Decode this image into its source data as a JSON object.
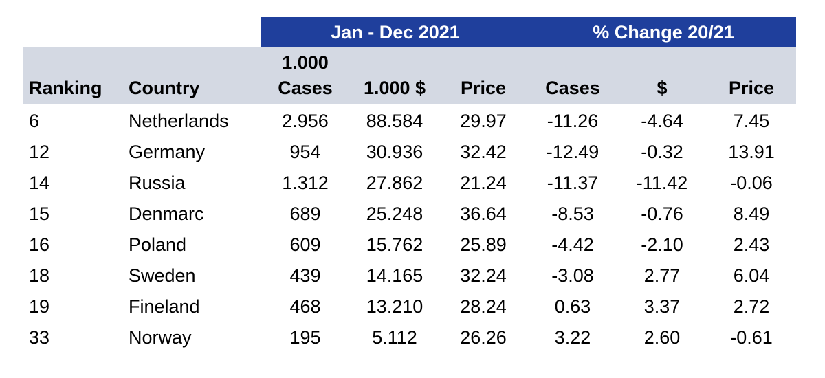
{
  "header": {
    "period_label": "Jan - Dec 2021",
    "change_label": "% Change 20/21",
    "band_color": "#1f3f9c",
    "subheader_color": "#d4d9e3"
  },
  "columns": {
    "ranking": "Ranking",
    "country": "Country",
    "cases_top": "1.000",
    "cases_bottom": "Cases",
    "usd": "1.000 $",
    "price": "Price",
    "pct_cases": "Cases",
    "pct_usd": "$",
    "pct_price": "Price"
  },
  "rows": [
    {
      "ranking": "6",
      "country": "Netherlands",
      "cases": "2.956",
      "usd": "88.584",
      "price": "29.97",
      "pct_cases": "-11.26",
      "pct_usd": "-4.64",
      "pct_price": "7.45"
    },
    {
      "ranking": "12",
      "country": "Germany",
      "cases": "954",
      "usd": "30.936",
      "price": "32.42",
      "pct_cases": "-12.49",
      "pct_usd": "-0.32",
      "pct_price": "13.91"
    },
    {
      "ranking": "14",
      "country": "Russia",
      "cases": "1.312",
      "usd": "27.862",
      "price": "21.24",
      "pct_cases": "-11.37",
      "pct_usd": "-11.42",
      "pct_price": "-0.06"
    },
    {
      "ranking": "15",
      "country": "Denmarc",
      "cases": "689",
      "usd": "25.248",
      "price": "36.64",
      "pct_cases": "-8.53",
      "pct_usd": "-0.76",
      "pct_price": "8.49"
    },
    {
      "ranking": "16",
      "country": "Poland",
      "cases": "609",
      "usd": "15.762",
      "price": "25.89",
      "pct_cases": "-4.42",
      "pct_usd": "-2.10",
      "pct_price": "2.43"
    },
    {
      "ranking": "18",
      "country": "Sweden",
      "cases": "439",
      "usd": "14.165",
      "price": "32.24",
      "pct_cases": "-3.08",
      "pct_usd": "2.77",
      "pct_price": "6.04"
    },
    {
      "ranking": "19",
      "country": "Fineland",
      "cases": "468",
      "usd": "13.210",
      "price": "28.24",
      "pct_cases": "0.63",
      "pct_usd": "3.37",
      "pct_price": "2.72"
    },
    {
      "ranking": "33",
      "country": "Norway",
      "cases": "195",
      "usd": "5.112",
      "price": "26.26",
      "pct_cases": "3.22",
      "pct_usd": "2.60",
      "pct_price": "-0.61"
    }
  ]
}
